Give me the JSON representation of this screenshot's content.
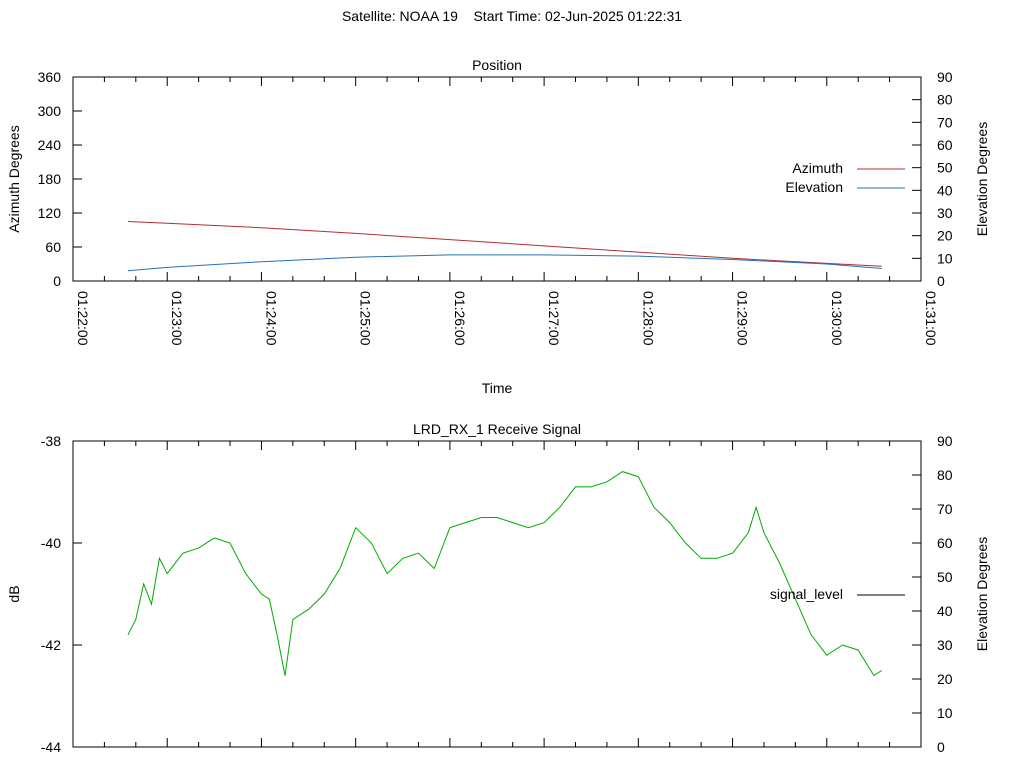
{
  "page": {
    "title": "Satellite: NOAA 19    Start Time: 02-Jun-2025 01:22:31"
  },
  "chart_data": [
    {
      "type": "line",
      "title": "Position",
      "xlabel": "Time",
      "ylabel": "Azimuth Degrees",
      "y2label": "Elevation Degrees",
      "x_tick_labels": [
        "01:22:00",
        "01:23:00",
        "01:24:00",
        "01:25:00",
        "01:26:00",
        "01:27:00",
        "01:28:00",
        "01:29:00",
        "01:30:00",
        "01:31:00"
      ],
      "xlim": [
        "01:22:00",
        "01:31:00"
      ],
      "ylim": [
        0,
        360
      ],
      "y_ticks": [
        0,
        60,
        120,
        180,
        240,
        300,
        360
      ],
      "y2lim": [
        0,
        90
      ],
      "y2_ticks": [
        0,
        10,
        20,
        30,
        40,
        50,
        60,
        70,
        80,
        90
      ],
      "legend_position": "right",
      "grid": false,
      "series": [
        {
          "name": "Azimuth",
          "axis": "left",
          "color": "#b03030",
          "x": [
            "01:22:35",
            "01:23:00",
            "01:24:00",
            "01:25:00",
            "01:26:00",
            "01:27:00",
            "01:28:00",
            "01:29:00",
            "01:30:00",
            "01:30:35"
          ],
          "values": [
            105,
            102,
            94,
            84,
            73,
            62,
            51,
            40,
            31,
            26
          ]
        },
        {
          "name": "Elevation",
          "axis": "right",
          "color": "#2a70b8",
          "x": [
            "01:22:35",
            "01:23:00",
            "01:24:00",
            "01:25:00",
            "01:26:00",
            "01:27:00",
            "01:28:00",
            "01:29:00",
            "01:30:00",
            "01:30:35"
          ],
          "values": [
            4.5,
            6,
            8.5,
            10.5,
            11.5,
            11.5,
            11,
            9.5,
            7.5,
            5.5
          ]
        }
      ]
    },
    {
      "type": "line",
      "title": "LRD_RX_1 Receive Signal",
      "ylabel": "dB",
      "y2label": "Elevation Degrees",
      "xlim": [
        "01:22:00",
        "01:31:00"
      ],
      "ylim": [
        -44,
        -38
      ],
      "y_ticks": [
        -44,
        -42,
        -40,
        -38
      ],
      "y2lim": [
        0,
        90
      ],
      "y2_ticks": [
        0,
        10,
        20,
        30,
        40,
        50,
        60,
        70,
        80,
        90
      ],
      "legend_position": "right",
      "grid": false,
      "series": [
        {
          "name": "signal_level",
          "color": "#00aa00",
          "x": [
            "01:22:35",
            "01:22:40",
            "01:22:45",
            "01:22:50",
            "01:22:55",
            "01:23:00",
            "01:23:10",
            "01:23:20",
            "01:23:30",
            "01:23:40",
            "01:23:50",
            "01:24:00",
            "01:24:05",
            "01:24:10",
            "01:24:15",
            "01:24:20",
            "01:24:30",
            "01:24:40",
            "01:24:50",
            "01:25:00",
            "01:25:10",
            "01:25:20",
            "01:25:30",
            "01:25:40",
            "01:25:50",
            "01:26:00",
            "01:26:10",
            "01:26:20",
            "01:26:30",
            "01:26:40",
            "01:26:50",
            "01:27:00",
            "01:27:10",
            "01:27:20",
            "01:27:30",
            "01:27:40",
            "01:27:50",
            "01:28:00",
            "01:28:10",
            "01:28:20",
            "01:28:30",
            "01:28:40",
            "01:28:50",
            "01:29:00",
            "01:29:10",
            "01:29:15",
            "01:29:20",
            "01:29:30",
            "01:29:40",
            "01:29:50",
            "01:30:00",
            "01:30:10",
            "01:30:20",
            "01:30:30",
            "01:30:35"
          ],
          "values": [
            -41.8,
            -41.5,
            -40.8,
            -41.2,
            -40.3,
            -40.6,
            -40.2,
            -40.1,
            -39.9,
            -40.0,
            -40.6,
            -41.0,
            -41.1,
            -41.8,
            -42.6,
            -41.5,
            -41.3,
            -41.0,
            -40.5,
            -39.7,
            -40.0,
            -40.6,
            -40.3,
            -40.2,
            -40.5,
            -39.7,
            -39.6,
            -39.5,
            -39.5,
            -39.6,
            -39.7,
            -39.6,
            -39.3,
            -38.9,
            -38.9,
            -38.8,
            -38.6,
            -38.7,
            -39.3,
            -39.6,
            -40.0,
            -40.3,
            -40.3,
            -40.2,
            -39.8,
            -39.3,
            -39.8,
            -40.4,
            -41.1,
            -41.8,
            -42.2,
            -42.0,
            -42.1,
            -42.6,
            -42.5
          ]
        }
      ]
    }
  ]
}
